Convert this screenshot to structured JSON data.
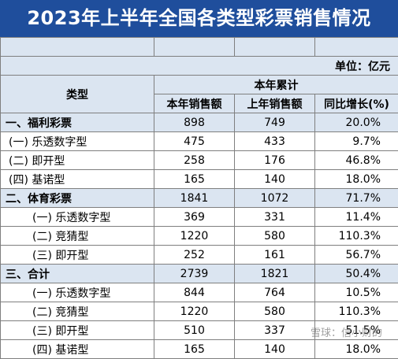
{
  "title": "2023年上半年全国各类型彩票销售情况",
  "unit": "单位：亿元",
  "header": {
    "type_label": "类型",
    "group_label": "本年累计",
    "columns": [
      "本年销售额",
      "上年销售额",
      "同比增长(%)"
    ]
  },
  "rows": [
    {
      "level": 1,
      "name": "一、福利彩票",
      "cur": "898",
      "prev": "749",
      "growth": "20.0%"
    },
    {
      "level": 2,
      "name": "(一) 乐透数字型",
      "cur": "475",
      "prev": "433",
      "growth": "9.7%"
    },
    {
      "level": 2,
      "name": "(二) 即开型",
      "cur": "258",
      "prev": "176",
      "growth": "46.8%"
    },
    {
      "level": 2,
      "name": "(四) 基诺型",
      "cur": "165",
      "prev": "140",
      "growth": "18.0%"
    },
    {
      "level": 1,
      "name": "二、体育彩票",
      "cur": "1841",
      "prev": "1072",
      "growth": "71.7%"
    },
    {
      "level": 3,
      "name": "(一) 乐透数字型",
      "cur": "369",
      "prev": "331",
      "growth": "11.4%"
    },
    {
      "level": 3,
      "name": "(二) 竞猜型",
      "cur": "1220",
      "prev": "580",
      "growth": "110.3%"
    },
    {
      "level": 3,
      "name": "(三) 即开型",
      "cur": "252",
      "prev": "161",
      "growth": "56.7%"
    },
    {
      "level": 1,
      "name": "三、合计",
      "cur": "2739",
      "prev": "1821",
      "growth": "50.4%"
    },
    {
      "level": 3,
      "name": "(一) 乐透数字型",
      "cur": "844",
      "prev": "764",
      "growth": "10.5%"
    },
    {
      "level": 3,
      "name": "(二) 竞猜型",
      "cur": "1220",
      "prev": "580",
      "growth": "110.3%"
    },
    {
      "level": 3,
      "name": "(三) 即开型",
      "cur": "510",
      "prev": "337",
      "growth": "51.5%"
    },
    {
      "level": 3,
      "name": "(四) 基诺型",
      "cur": "165",
      "prev": "140",
      "growth": "18.0%"
    }
  ],
  "watermark": "雪球：信小财的",
  "colors": {
    "title_bg": "#1f4e9c",
    "header_bg": "#dbe5f1",
    "grid": "#7f7f7f"
  }
}
